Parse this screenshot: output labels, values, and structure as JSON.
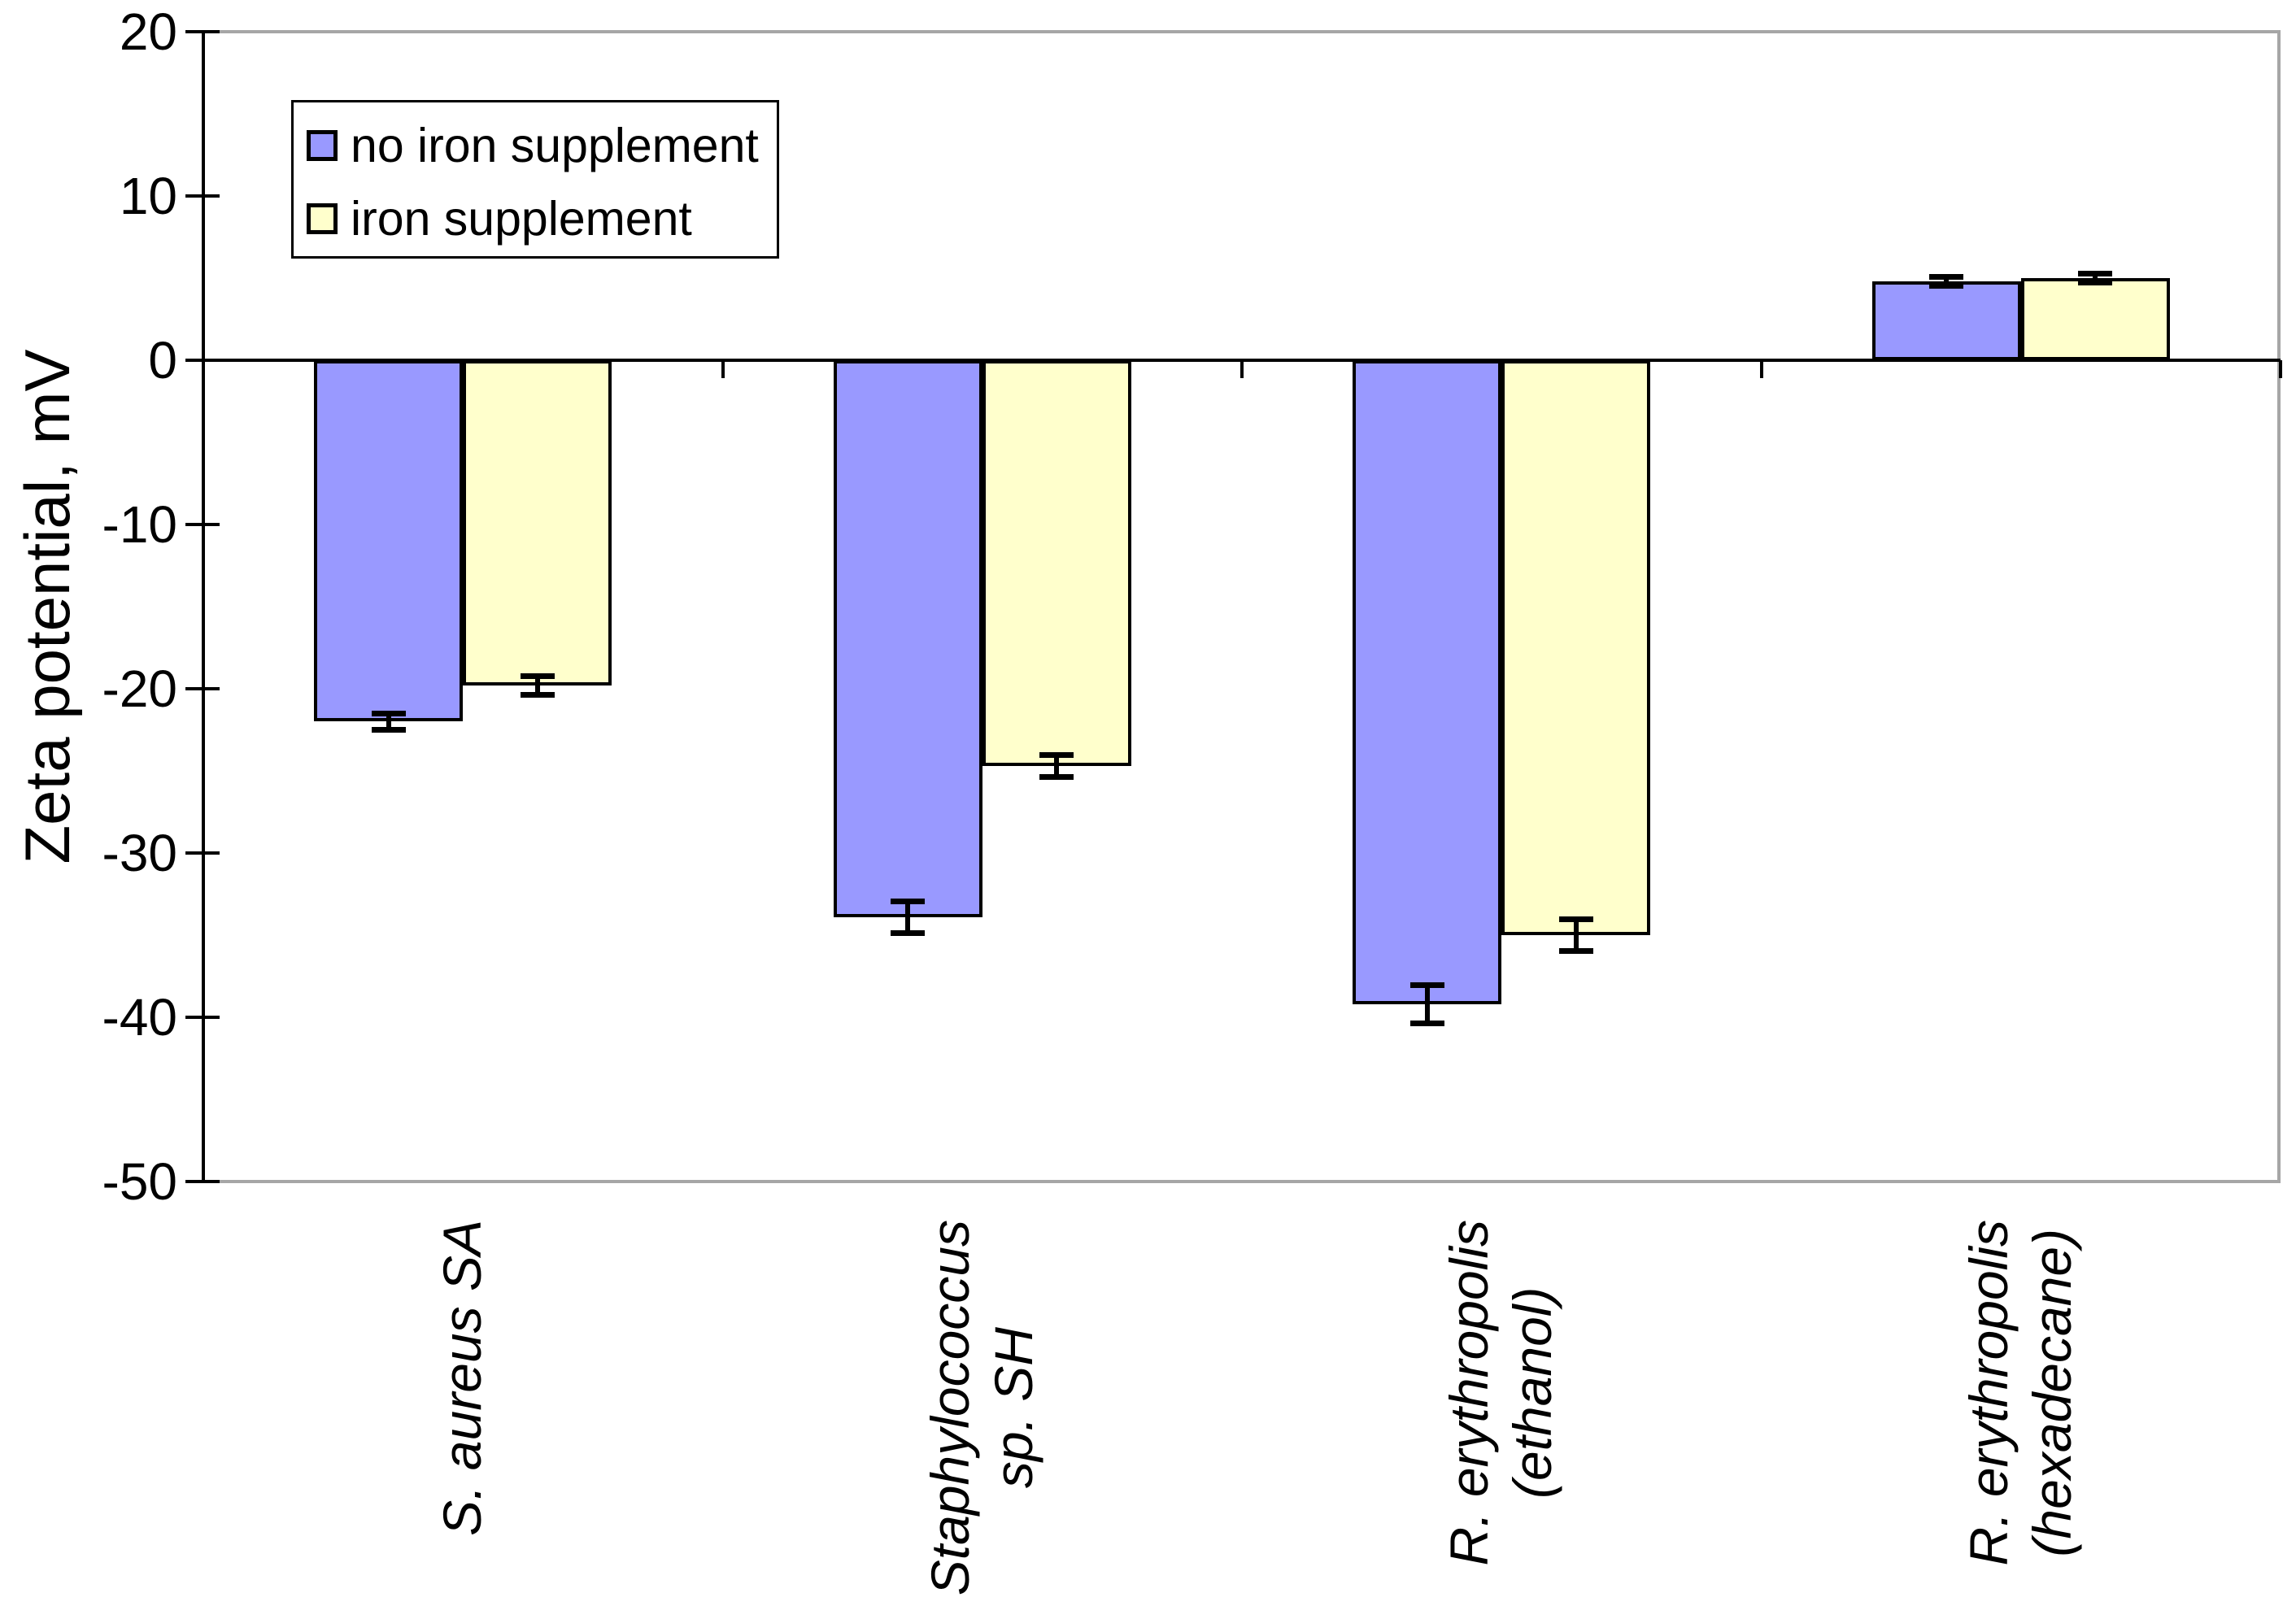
{
  "figure": {
    "background": "#ffffff"
  },
  "y_axis": {
    "title": "Zeta potential, mV",
    "tick_labels": [
      "20",
      "10",
      "0",
      "-10",
      "-20",
      "-30",
      "-40",
      "-50"
    ],
    "min": -50,
    "max": 20,
    "tick_step": 10
  },
  "legend": {
    "position": "top-left",
    "items": [
      {
        "label": "no iron supplement",
        "color": "#9999ff"
      },
      {
        "label": "iron supplement",
        "color": "#ffffcc"
      }
    ]
  },
  "chart_data": {
    "type": "bar",
    "title": "",
    "xlabel": "",
    "ylabel": "Zeta potential, mV",
    "ylim": [
      -50,
      20
    ],
    "grid": false,
    "legend_position": "top-left",
    "bar_outline_color": "#000000",
    "frame_color": "#a6a6a6",
    "error_bar_color": "#000000",
    "categories": [
      "S. aureus SA",
      "Staphylococcus sp. SH",
      "R. erythropolis (ethanol)",
      "R. erythropolis (hexadecane)"
    ],
    "category_label_lines": [
      [
        "S. aureus SA"
      ],
      [
        "Staphylococcus",
        "sp. SH"
      ],
      [
        "R. erythropolis",
        "(ethanol)"
      ],
      [
        "R. erythropolis",
        "(hexadecane)"
      ]
    ],
    "yticks": [
      20,
      10,
      0,
      -10,
      -20,
      -30,
      -40,
      -50
    ],
    "series": [
      {
        "name": "no iron supplement",
        "color": "#9999ff",
        "values": [
          -22.0,
          -33.9,
          -39.2,
          4.8
        ],
        "errors": [
          0.5,
          1.0,
          1.2,
          0.3
        ]
      },
      {
        "name": "iron supplement",
        "color": "#ffffcc",
        "values": [
          -19.8,
          -24.7,
          -35.0,
          5.0
        ],
        "errors": [
          0.6,
          0.7,
          1.0,
          0.3
        ]
      }
    ]
  }
}
